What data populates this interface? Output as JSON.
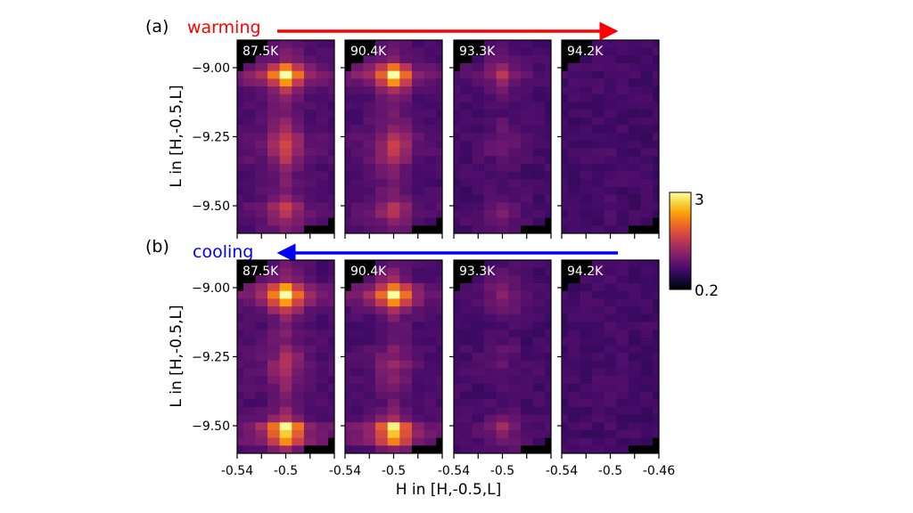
{
  "chart_data": {
    "type": "heatmap",
    "colormap": "inferno",
    "color_range": [
      0.2,
      3
    ],
    "colorbar": {
      "min_label": "0.2",
      "max_label": "3"
    },
    "xlabel": "H in [H,-0.5,L]",
    "ylabel": "L in [H,-0.5,L]",
    "x_range": [
      -0.54,
      -0.46
    ],
    "y_range": [
      -9.6,
      -8.9
    ],
    "x_tick_labels": [
      "-0.54",
      "-0.5",
      "-0.46"
    ],
    "y_tick_labels": [
      "−9.00",
      "−9.25",
      "−9.50"
    ],
    "y_ticks": [
      -9.0,
      -9.25,
      -9.5
    ],
    "x_ticks": [
      -0.54,
      -0.52,
      -0.5,
      -0.48,
      -0.46
    ],
    "h_centers": [
      -0.54,
      -0.53,
      -0.52,
      -0.51,
      -0.5,
      -0.49,
      -0.48,
      -0.47,
      -0.46
    ],
    "n_L_rows": 25,
    "background_intensity": 0.75,
    "column_weights": [
      0.15,
      0.2,
      0.3,
      0.6,
      1.0,
      0.6,
      0.25,
      0.15,
      0.15
    ],
    "masked_top_left_cols_per_row": [
      3,
      3,
      2,
      1
    ],
    "masked_bottom_right": [
      [
        23,
        8
      ],
      [
        24,
        6
      ],
      [
        24,
        7
      ],
      [
        24,
        8
      ]
    ],
    "rows": [
      {
        "label": "(a)",
        "direction": "warming",
        "color": "#ff0000",
        "panels": [
          {
            "temperature": "87.5K",
            "row_profile": [
              0.3,
              0.4,
              0.5,
              1.5,
              2.3,
              1.6,
              0.8,
              0.5,
              0.4,
              0.4,
              0.5,
              0.6,
              0.9,
              1.1,
              1.0,
              0.8,
              0.5,
              0.4,
              0.4,
              0.4,
              0.5,
              1.0,
              0.9,
              0.6,
              0.5
            ]
          },
          {
            "temperature": "90.4K",
            "row_profile": [
              0.3,
              0.4,
              0.5,
              1.4,
              2.2,
              1.5,
              0.7,
              0.4,
              0.4,
              0.4,
              0.4,
              0.5,
              0.8,
              1.0,
              0.9,
              0.7,
              0.5,
              0.4,
              0.3,
              0.4,
              0.5,
              0.9,
              0.8,
              0.5,
              0.4
            ]
          },
          {
            "temperature": "93.3K",
            "row_profile": [
              0.1,
              0.2,
              0.3,
              0.5,
              0.8,
              0.5,
              0.3,
              0.2,
              0.1,
              0.1,
              0.2,
              0.2,
              0.3,
              0.3,
              0.3,
              0.2,
              0.2,
              0.1,
              0.1,
              0.1,
              0.2,
              0.4,
              0.5,
              0.3,
              0.2
            ]
          },
          {
            "temperature": "94.2K",
            "row_profile": [
              0.05,
              0.05,
              0.05,
              0.05,
              0.05,
              0.05,
              0.05,
              0.05,
              0.05,
              0.05,
              0.05,
              0.05,
              0.05,
              0.05,
              0.05,
              0.05,
              0.05,
              0.05,
              0.05,
              0.05,
              0.05,
              0.05,
              0.05,
              0.05,
              0.05
            ]
          }
        ]
      },
      {
        "label": "(b)",
        "direction": "cooling",
        "color": "#0000ff",
        "panels": [
          {
            "temperature": "87.5K",
            "row_profile": [
              0.3,
              0.4,
              0.6,
              1.6,
              2.3,
              1.7,
              0.9,
              0.5,
              0.4,
              0.4,
              0.4,
              0.5,
              0.7,
              0.8,
              0.7,
              0.6,
              0.5,
              0.4,
              0.4,
              0.5,
              0.8,
              2.2,
              2.0,
              1.6,
              0.6
            ]
          },
          {
            "temperature": "90.4K",
            "row_profile": [
              0.3,
              0.4,
              0.6,
              1.5,
              2.2,
              1.6,
              0.8,
              0.4,
              0.3,
              0.3,
              0.3,
              0.4,
              0.5,
              0.6,
              0.5,
              0.5,
              0.4,
              0.3,
              0.3,
              0.4,
              0.7,
              2.1,
              1.9,
              1.5,
              0.5
            ]
          },
          {
            "temperature": "93.3K",
            "row_profile": [
              0.1,
              0.2,
              0.3,
              0.4,
              0.5,
              0.4,
              0.3,
              0.2,
              0.1,
              0.1,
              0.1,
              0.2,
              0.2,
              0.2,
              0.2,
              0.2,
              0.1,
              0.1,
              0.1,
              0.2,
              0.3,
              0.6,
              0.5,
              0.4,
              0.2
            ]
          },
          {
            "temperature": "94.2K",
            "row_profile": [
              0.05,
              0.05,
              0.05,
              0.05,
              0.05,
              0.05,
              0.05,
              0.05,
              0.05,
              0.05,
              0.05,
              0.05,
              0.05,
              0.05,
              0.05,
              0.05,
              0.05,
              0.05,
              0.05,
              0.05,
              0.05,
              0.05,
              0.05,
              0.05,
              0.05
            ]
          }
        ]
      }
    ]
  }
}
